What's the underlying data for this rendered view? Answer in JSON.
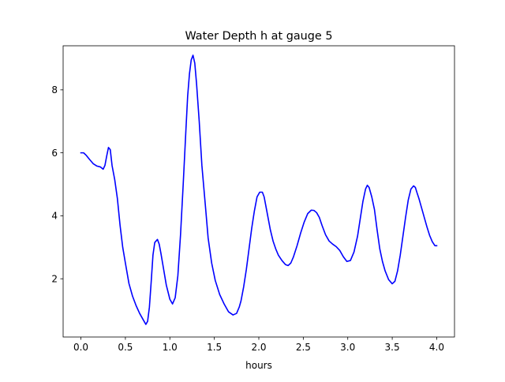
{
  "chart_data": {
    "type": "line",
    "title": "Water Depth h at gauge 5",
    "xlabel": "hours",
    "ylabel": "",
    "xlim": [
      -0.2,
      4.2
    ],
    "ylim": [
      0.15,
      9.4
    ],
    "xticks": [
      0.0,
      0.5,
      1.0,
      1.5,
      2.0,
      2.5,
      3.0,
      3.5,
      4.0
    ],
    "xtick_labels": [
      "0.0",
      "0.5",
      "1.0",
      "1.5",
      "2.0",
      "2.5",
      "3.0",
      "3.5",
      "4.0"
    ],
    "yticks": [
      2,
      4,
      6,
      8
    ],
    "ytick_labels": [
      "2",
      "4",
      "6",
      "8"
    ],
    "grid": false,
    "series": [
      {
        "color": "#0000ff",
        "x": [
          0.0,
          0.03,
          0.06,
          0.1,
          0.14,
          0.18,
          0.22,
          0.25,
          0.27,
          0.29,
          0.31,
          0.33,
          0.35,
          0.38,
          0.41,
          0.44,
          0.47,
          0.5,
          0.54,
          0.58,
          0.62,
          0.66,
          0.7,
          0.73,
          0.75,
          0.77,
          0.79,
          0.81,
          0.83,
          0.86,
          0.88,
          0.9,
          0.93,
          0.96,
          1.0,
          1.03,
          1.06,
          1.09,
          1.12,
          1.15,
          1.18,
          1.2,
          1.22,
          1.24,
          1.26,
          1.28,
          1.3,
          1.33,
          1.36,
          1.4,
          1.43,
          1.47,
          1.51,
          1.56,
          1.61,
          1.66,
          1.71,
          1.75,
          1.78,
          1.8,
          1.83,
          1.86,
          1.89,
          1.92,
          1.95,
          1.98,
          2.01,
          2.04,
          2.06,
          2.08,
          2.1,
          2.13,
          2.16,
          2.19,
          2.22,
          2.26,
          2.3,
          2.33,
          2.36,
          2.39,
          2.43,
          2.47,
          2.51,
          2.55,
          2.59,
          2.62,
          2.65,
          2.68,
          2.71,
          2.75,
          2.79,
          2.83,
          2.87,
          2.91,
          2.95,
          2.99,
          3.03,
          3.07,
          3.11,
          3.14,
          3.17,
          3.2,
          3.22,
          3.24,
          3.27,
          3.3,
          3.33,
          3.36,
          3.39,
          3.42,
          3.46,
          3.5,
          3.53,
          3.56,
          3.59,
          3.62,
          3.65,
          3.68,
          3.71,
          3.74,
          3.76,
          3.78,
          3.8,
          3.83,
          3.86,
          3.89,
          3.92,
          3.95,
          3.98,
          4.0
        ],
        "y": [
          6.0,
          6.0,
          5.92,
          5.78,
          5.65,
          5.58,
          5.55,
          5.48,
          5.6,
          5.9,
          6.17,
          6.1,
          5.6,
          5.15,
          4.55,
          3.7,
          3.0,
          2.5,
          1.85,
          1.45,
          1.15,
          0.9,
          0.7,
          0.55,
          0.65,
          1.1,
          1.9,
          2.75,
          3.15,
          3.25,
          3.1,
          2.8,
          2.3,
          1.8,
          1.35,
          1.2,
          1.4,
          2.1,
          3.4,
          5.0,
          6.7,
          7.8,
          8.5,
          8.95,
          9.1,
          8.85,
          8.2,
          7.0,
          5.6,
          4.3,
          3.3,
          2.5,
          1.95,
          1.5,
          1.2,
          0.95,
          0.85,
          0.9,
          1.1,
          1.3,
          1.75,
          2.3,
          2.95,
          3.6,
          4.15,
          4.6,
          4.75,
          4.75,
          4.6,
          4.3,
          4.0,
          3.55,
          3.2,
          2.95,
          2.75,
          2.58,
          2.45,
          2.42,
          2.5,
          2.7,
          3.05,
          3.45,
          3.8,
          4.07,
          4.18,
          4.17,
          4.1,
          3.95,
          3.7,
          3.4,
          3.2,
          3.1,
          3.02,
          2.9,
          2.7,
          2.55,
          2.58,
          2.85,
          3.35,
          3.9,
          4.45,
          4.85,
          4.97,
          4.9,
          4.6,
          4.2,
          3.55,
          2.95,
          2.55,
          2.25,
          1.97,
          1.84,
          1.92,
          2.25,
          2.75,
          3.35,
          3.95,
          4.5,
          4.85,
          4.95,
          4.9,
          4.72,
          4.55,
          4.25,
          3.95,
          3.65,
          3.38,
          3.18,
          3.05,
          3.05
        ]
      }
    ]
  }
}
